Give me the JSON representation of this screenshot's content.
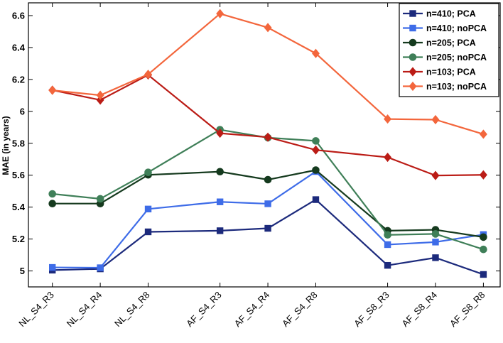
{
  "chart_data": {
    "type": "line",
    "title": "",
    "xlabel": "",
    "ylabel": "MAE (in years)",
    "ylim": [
      4.9,
      6.68
    ],
    "yticks": [
      5,
      5.2,
      5.4,
      5.6,
      5.8,
      6,
      6.2,
      6.4,
      6.6
    ],
    "ytick_labels": [
      "5",
      "5.2",
      "5.4",
      "5.6",
      "5.8",
      "6",
      "6.2",
      "6.4",
      "6.6"
    ],
    "grid": false,
    "legend_position": "top-right",
    "categories": [
      "NL_S4_R3",
      "NL_S4_R4",
      "NL_S4_R8",
      "AF_S4_R3",
      "AF_S4_R4",
      "AF_S4_R8",
      "AF_S8_R3",
      "AF_S8_R4",
      "AF_S8_R8"
    ],
    "x": [
      1,
      2,
      3,
      4.5,
      5.5,
      6.5,
      8,
      9,
      10
    ],
    "series": [
      {
        "name": "n=410; PCA",
        "color": "#1c2a7c",
        "marker": "square",
        "values": [
          5.005,
          5.013,
          5.245,
          5.252,
          5.267,
          5.447,
          5.035,
          5.083,
          4.978
        ]
      },
      {
        "name": "n=410; noPCA",
        "color": "#3e6ce8",
        "marker": "square",
        "values": [
          5.022,
          5.02,
          5.388,
          5.433,
          5.421,
          5.623,
          5.165,
          5.181,
          5.228
        ]
      },
      {
        "name": "n=205; PCA",
        "color": "#153a1e",
        "marker": "circle",
        "values": [
          5.422,
          5.422,
          5.602,
          5.622,
          5.572,
          5.632,
          5.252,
          5.258,
          5.212
        ]
      },
      {
        "name": "n=205; noPCA",
        "color": "#3f7f58",
        "marker": "circle",
        "values": [
          5.483,
          5.452,
          5.618,
          5.885,
          5.835,
          5.815,
          5.226,
          5.232,
          5.135
        ]
      },
      {
        "name": "n=103; PCA",
        "color": "#bb1c16",
        "marker": "diamond",
        "values": [
          6.133,
          6.071,
          6.228,
          5.863,
          5.838,
          5.758,
          5.712,
          5.598,
          5.602
        ]
      },
      {
        "name": "n=103; noPCA",
        "color": "#f3663c",
        "marker": "diamond",
        "values": [
          6.132,
          6.101,
          6.232,
          6.612,
          6.525,
          6.363,
          5.952,
          5.948,
          5.857
        ]
      }
    ]
  }
}
